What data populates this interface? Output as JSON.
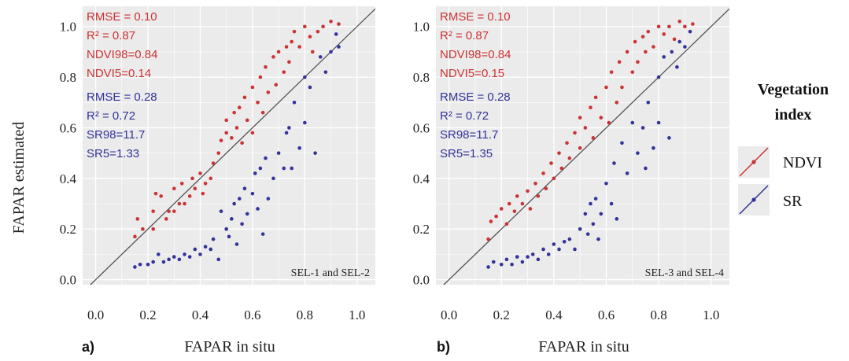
{
  "figure": {
    "ylabel": "FAPAR estimated",
    "legend": {
      "title_line1": "Vegetation",
      "title_line2": "index",
      "entries": [
        {
          "label": "NDVI",
          "color": "#cc3333"
        },
        {
          "label": "SR",
          "color": "#33339a"
        }
      ]
    }
  },
  "chart_data": [
    {
      "type": "scatter",
      "panel_label": "a)",
      "xlabel": "FAPAR in situ",
      "annotation": "SEL-1 and SEL-2",
      "xlim": [
        -0.05,
        1.07
      ],
      "ylim": [
        -0.02,
        1.08
      ],
      "x_ticks": [
        "0.0",
        "0.2",
        "0.4",
        "0.6",
        "0.8",
        "1.0"
      ],
      "y_ticks": [
        "0.0",
        "0.2",
        "0.4",
        "0.6",
        "0.8",
        "1.0"
      ],
      "grid": true,
      "reference_line": "1:1",
      "stats_ndvi": [
        "RMSE = 0.10",
        "R² = 0.87",
        "NDVI98=0.84",
        "NDVI5=0.14"
      ],
      "stats_sr": [
        "RMSE = 0.28",
        "R² = 0.72",
        "SR98=11.7",
        "SR5=1.33"
      ],
      "series": [
        {
          "color": "#cc3333",
          "points": [
            [
              0.15,
              0.17
            ],
            [
              0.16,
              0.24
            ],
            [
              0.18,
              0.2
            ],
            [
              0.22,
              0.2
            ],
            [
              0.22,
              0.27
            ],
            [
              0.23,
              0.34
            ],
            [
              0.25,
              0.33
            ],
            [
              0.27,
              0.24
            ],
            [
              0.28,
              0.27
            ],
            [
              0.3,
              0.27
            ],
            [
              0.3,
              0.36
            ],
            [
              0.32,
              0.3
            ],
            [
              0.33,
              0.38
            ],
            [
              0.34,
              0.3
            ],
            [
              0.36,
              0.33
            ],
            [
              0.37,
              0.4
            ],
            [
              0.38,
              0.36
            ],
            [
              0.4,
              0.42
            ],
            [
              0.41,
              0.34
            ],
            [
              0.42,
              0.38
            ],
            [
              0.44,
              0.4
            ],
            [
              0.45,
              0.46
            ],
            [
              0.47,
              0.5
            ],
            [
              0.48,
              0.55
            ],
            [
              0.5,
              0.58
            ],
            [
              0.5,
              0.63
            ],
            [
              0.52,
              0.56
            ],
            [
              0.53,
              0.66
            ],
            [
              0.54,
              0.6
            ],
            [
              0.55,
              0.68
            ],
            [
              0.56,
              0.54
            ],
            [
              0.57,
              0.72
            ],
            [
              0.58,
              0.63
            ],
            [
              0.6,
              0.76
            ],
            [
              0.6,
              0.58
            ],
            [
              0.62,
              0.7
            ],
            [
              0.63,
              0.8
            ],
            [
              0.64,
              0.66
            ],
            [
              0.65,
              0.84
            ],
            [
              0.66,
              0.74
            ],
            [
              0.68,
              0.88
            ],
            [
              0.69,
              0.77
            ],
            [
              0.7,
              0.9
            ],
            [
              0.72,
              0.82
            ],
            [
              0.73,
              0.92
            ],
            [
              0.74,
              0.86
            ],
            [
              0.75,
              0.94
            ],
            [
              0.76,
              0.98
            ],
            [
              0.78,
              0.92
            ],
            [
              0.8,
              1.0
            ],
            [
              0.82,
              0.96
            ],
            [
              0.83,
              0.9
            ],
            [
              0.85,
              0.98
            ],
            [
              0.87,
              1.0
            ],
            [
              0.9,
              1.02
            ],
            [
              0.93,
              1.01
            ]
          ]
        },
        {
          "color": "#33339a",
          "points": [
            [
              0.15,
              0.05
            ],
            [
              0.17,
              0.06
            ],
            [
              0.2,
              0.06
            ],
            [
              0.22,
              0.07
            ],
            [
              0.24,
              0.1
            ],
            [
              0.26,
              0.07
            ],
            [
              0.28,
              0.08
            ],
            [
              0.3,
              0.09
            ],
            [
              0.32,
              0.08
            ],
            [
              0.34,
              0.1
            ],
            [
              0.36,
              0.09
            ],
            [
              0.38,
              0.12
            ],
            [
              0.4,
              0.1
            ],
            [
              0.42,
              0.13
            ],
            [
              0.44,
              0.12
            ],
            [
              0.45,
              0.16
            ],
            [
              0.47,
              0.08
            ],
            [
              0.48,
              0.27
            ],
            [
              0.5,
              0.2
            ],
            [
              0.51,
              0.17
            ],
            [
              0.52,
              0.24
            ],
            [
              0.53,
              0.3
            ],
            [
              0.54,
              0.14
            ],
            [
              0.55,
              0.32
            ],
            [
              0.56,
              0.22
            ],
            [
              0.57,
              0.36
            ],
            [
              0.58,
              0.26
            ],
            [
              0.6,
              0.34
            ],
            [
              0.61,
              0.42
            ],
            [
              0.62,
              0.28
            ],
            [
              0.63,
              0.44
            ],
            [
              0.64,
              0.18
            ],
            [
              0.65,
              0.48
            ],
            [
              0.66,
              0.32
            ],
            [
              0.68,
              0.4
            ],
            [
              0.7,
              0.5
            ],
            [
              0.72,
              0.44
            ],
            [
              0.73,
              0.58
            ],
            [
              0.74,
              0.6
            ],
            [
              0.75,
              0.44
            ],
            [
              0.76,
              0.7
            ],
            [
              0.78,
              0.52
            ],
            [
              0.8,
              0.8
            ],
            [
              0.8,
              0.62
            ],
            [
              0.82,
              0.76
            ],
            [
              0.84,
              0.5
            ],
            [
              0.86,
              0.88
            ],
            [
              0.88,
              0.82
            ],
            [
              0.9,
              0.9
            ],
            [
              0.92,
              0.97
            ],
            [
              0.93,
              0.92
            ]
          ]
        }
      ]
    },
    {
      "type": "scatter",
      "panel_label": "b)",
      "xlabel": "FAPAR in situ",
      "annotation": "SEL-3 and SEL-4",
      "xlim": [
        -0.05,
        1.07
      ],
      "ylim": [
        -0.02,
        1.08
      ],
      "x_ticks": [
        "0.0",
        "0.2",
        "0.4",
        "0.6",
        "0.8",
        "1.0"
      ],
      "y_ticks": [
        "0.0",
        "0.2",
        "0.4",
        "0.6",
        "0.8",
        "1.0"
      ],
      "grid": true,
      "reference_line": "1:1",
      "stats_ndvi": [
        "RMSE = 0.10",
        "R² = 0.87",
        "NDVI98=0.84",
        "NDVI5=0.15"
      ],
      "stats_sr": [
        "RMSE = 0.28",
        "R² = 0.72",
        "SR98=11.7",
        "SR5=1.35"
      ],
      "series": [
        {
          "color": "#cc3333",
          "points": [
            [
              0.15,
              0.16
            ],
            [
              0.16,
              0.23
            ],
            [
              0.18,
              0.25
            ],
            [
              0.2,
              0.28
            ],
            [
              0.22,
              0.22
            ],
            [
              0.23,
              0.3
            ],
            [
              0.25,
              0.27
            ],
            [
              0.26,
              0.33
            ],
            [
              0.28,
              0.3
            ],
            [
              0.3,
              0.35
            ],
            [
              0.31,
              0.28
            ],
            [
              0.33,
              0.38
            ],
            [
              0.34,
              0.33
            ],
            [
              0.36,
              0.42
            ],
            [
              0.37,
              0.36
            ],
            [
              0.39,
              0.46
            ],
            [
              0.4,
              0.4
            ],
            [
              0.42,
              0.5
            ],
            [
              0.43,
              0.44
            ],
            [
              0.45,
              0.54
            ],
            [
              0.46,
              0.48
            ],
            [
              0.48,
              0.58
            ],
            [
              0.5,
              0.52
            ],
            [
              0.5,
              0.64
            ],
            [
              0.52,
              0.6
            ],
            [
              0.54,
              0.68
            ],
            [
              0.55,
              0.56
            ],
            [
              0.56,
              0.72
            ],
            [
              0.58,
              0.64
            ],
            [
              0.6,
              0.76
            ],
            [
              0.61,
              0.62
            ],
            [
              0.62,
              0.82
            ],
            [
              0.64,
              0.7
            ],
            [
              0.65,
              0.86
            ],
            [
              0.66,
              0.76
            ],
            [
              0.68,
              0.9
            ],
            [
              0.7,
              0.82
            ],
            [
              0.71,
              0.94
            ],
            [
              0.72,
              0.86
            ],
            [
              0.74,
              0.96
            ],
            [
              0.75,
              0.9
            ],
            [
              0.76,
              0.98
            ],
            [
              0.78,
              0.92
            ],
            [
              0.8,
              1.0
            ],
            [
              0.82,
              0.97
            ],
            [
              0.84,
              1.0
            ],
            [
              0.86,
              0.95
            ],
            [
              0.88,
              1.02
            ],
            [
              0.9,
              1.0
            ],
            [
              0.93,
              1.01
            ]
          ]
        },
        {
          "color": "#33339a",
          "points": [
            [
              0.15,
              0.05
            ],
            [
              0.17,
              0.07
            ],
            [
              0.2,
              0.06
            ],
            [
              0.22,
              0.08
            ],
            [
              0.24,
              0.06
            ],
            [
              0.26,
              0.09
            ],
            [
              0.28,
              0.07
            ],
            [
              0.3,
              0.09
            ],
            [
              0.32,
              0.1
            ],
            [
              0.34,
              0.08
            ],
            [
              0.36,
              0.12
            ],
            [
              0.38,
              0.1
            ],
            [
              0.4,
              0.14
            ],
            [
              0.42,
              0.12
            ],
            [
              0.44,
              0.15
            ],
            [
              0.46,
              0.16
            ],
            [
              0.48,
              0.12
            ],
            [
              0.5,
              0.2
            ],
            [
              0.52,
              0.26
            ],
            [
              0.53,
              0.18
            ],
            [
              0.54,
              0.3
            ],
            [
              0.55,
              0.22
            ],
            [
              0.56,
              0.32
            ],
            [
              0.57,
              0.16
            ],
            [
              0.58,
              0.26
            ],
            [
              0.6,
              0.38
            ],
            [
              0.62,
              0.3
            ],
            [
              0.63,
              0.46
            ],
            [
              0.64,
              0.24
            ],
            [
              0.66,
              0.54
            ],
            [
              0.68,
              0.42
            ],
            [
              0.7,
              0.62
            ],
            [
              0.72,
              0.5
            ],
            [
              0.74,
              0.6
            ],
            [
              0.75,
              0.44
            ],
            [
              0.76,
              0.7
            ],
            [
              0.78,
              0.52
            ],
            [
              0.8,
              0.8
            ],
            [
              0.8,
              0.62
            ],
            [
              0.82,
              0.88
            ],
            [
              0.84,
              0.56
            ],
            [
              0.85,
              0.9
            ],
            [
              0.87,
              0.84
            ],
            [
              0.88,
              0.94
            ],
            [
              0.9,
              0.92
            ],
            [
              0.92,
              0.98
            ]
          ]
        }
      ]
    }
  ]
}
